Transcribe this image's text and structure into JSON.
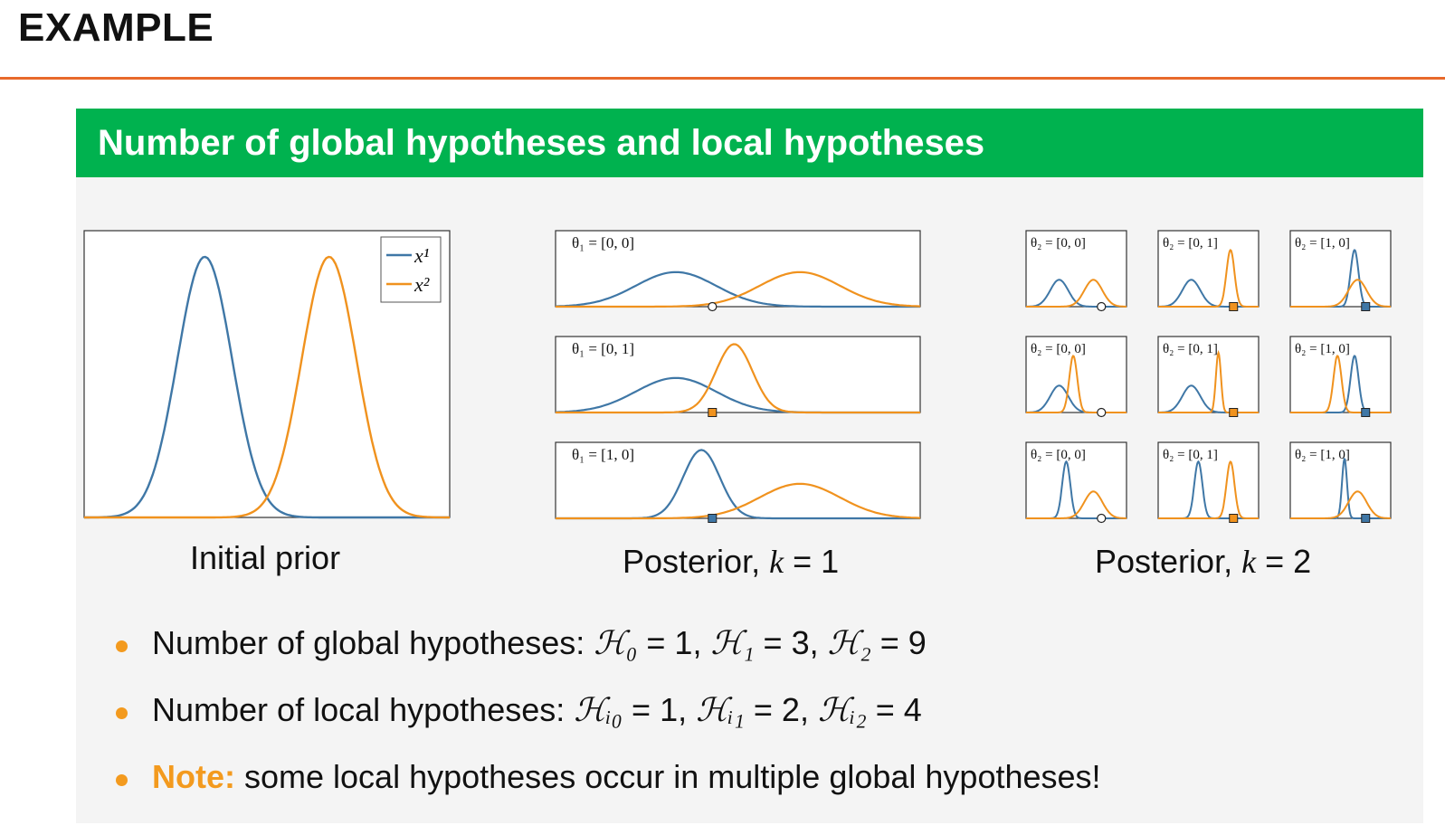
{
  "slide": {
    "title": "EXAMPLE",
    "block_title": "Number of global hypotheses and local hypotheses",
    "accent_color": "#e8692a",
    "block_header_color": "#00b24f"
  },
  "figures": {
    "initial_prior": {
      "caption": "Initial prior",
      "legend": [
        "x¹",
        "x²"
      ]
    },
    "posterior_k1": {
      "caption_prefix": "Posterior, ",
      "caption_math": "k",
      "caption_suffix": " = 1",
      "panel_labels": [
        "θ₁ = [0,  0]",
        "θ₁ = [0,  1]",
        "θ₁ = [1,  0]"
      ]
    },
    "posterior_k2": {
      "caption_prefix": "Posterior, ",
      "caption_math": "k",
      "caption_suffix": " = 2",
      "panel_labels": [
        [
          "θ₂ = [0,  0]",
          "θ₂ = [0,  1]",
          "θ₂ = [1,  0]"
        ],
        [
          "θ₂ = [0,  0]",
          "θ₂ = [0,  1]",
          "θ₂ = [1,  0]"
        ],
        [
          "θ₂ = [0,  0]",
          "θ₂ = [0,  1]",
          "θ₂ = [1,  0]"
        ]
      ]
    }
  },
  "bullets": {
    "global_text": "Number of global hypotheses: ",
    "global_h0": "ℋ₀",
    "global_v0": " = 1, ",
    "global_h1": "ℋ₁",
    "global_v1": " = 3, ",
    "global_h2": "ℋ₂",
    "global_v2": " = 9",
    "local_text": "Number of local hypotheses: ",
    "local_h0": "ℋᵢ₀",
    "local_v0": " = 1, ",
    "local_h1": "ℋᵢ₁",
    "local_v1": " = 2, ",
    "local_h2": "ℋᵢ₂",
    "local_v2": " = 4",
    "note_label": "Note:",
    "note_text": " some local hypotheses occur in multiple global hypotheses!"
  },
  "colors": {
    "blue": "#3f77a6",
    "orange": "#f0921e"
  },
  "chart_data": [
    {
      "type": "line",
      "name": "initial_prior",
      "series": [
        {
          "name": "x¹",
          "curve": "gaussian",
          "mean": 0.33,
          "sd": 0.075,
          "peak": 1.0
        },
        {
          "name": "x²",
          "curve": "gaussian",
          "mean": 0.67,
          "sd": 0.075,
          "peak": 1.0
        }
      ]
    },
    {
      "type": "line",
      "name": "posterior_k1",
      "panels": [
        {
          "marker": "open-circle",
          "marker_x": 0.43,
          "series": [
            {
              "mean": 0.33,
              "sd": 0.11,
              "peak": 0.48
            },
            {
              "mean": 0.67,
              "sd": 0.11,
              "peak": 0.48
            }
          ]
        },
        {
          "marker": "orange-square",
          "marker_x": 0.43,
          "series": [
            {
              "mean": 0.33,
              "sd": 0.11,
              "peak": 0.48
            },
            {
              "mean": 0.49,
              "sd": 0.05,
              "peak": 0.95
            }
          ]
        },
        {
          "marker": "blue-square",
          "marker_x": 0.43,
          "series": [
            {
              "mean": 0.4,
              "sd": 0.05,
              "peak": 0.95
            },
            {
              "mean": 0.67,
              "sd": 0.11,
              "peak": 0.48
            }
          ]
        }
      ]
    },
    {
      "type": "line",
      "name": "posterior_k2",
      "panels": [
        {
          "row": 0,
          "col": 0,
          "marker": "open-circle",
          "series": [
            {
              "mean": 0.33,
              "sd": 0.09,
              "peak": 0.45
            },
            {
              "mean": 0.67,
              "sd": 0.09,
              "peak": 0.45
            }
          ]
        },
        {
          "row": 0,
          "col": 1,
          "marker": "orange-square",
          "series": [
            {
              "mean": 0.33,
              "sd": 0.09,
              "peak": 0.45
            },
            {
              "mean": 0.72,
              "sd": 0.04,
              "peak": 0.95
            }
          ]
        },
        {
          "row": 0,
          "col": 2,
          "marker": "blue-square",
          "series": [
            {
              "mean": 0.64,
              "sd": 0.04,
              "peak": 0.95
            },
            {
              "mean": 0.67,
              "sd": 0.09,
              "peak": 0.45
            }
          ]
        },
        {
          "row": 1,
          "col": 0,
          "marker": "open-circle",
          "series": [
            {
              "mean": 0.33,
              "sd": 0.09,
              "peak": 0.45
            },
            {
              "mean": 0.47,
              "sd": 0.04,
              "peak": 0.95
            }
          ]
        },
        {
          "row": 1,
          "col": 1,
          "marker": "orange-square",
          "series": [
            {
              "mean": 0.33,
              "sd": 0.09,
              "peak": 0.45
            },
            {
              "mean": 0.6,
              "sd": 0.025,
              "peak": 1.0
            }
          ]
        },
        {
          "row": 1,
          "col": 2,
          "marker": "blue-square",
          "series": [
            {
              "mean": 0.64,
              "sd": 0.04,
              "peak": 0.95
            },
            {
              "mean": 0.47,
              "sd": 0.04,
              "peak": 0.95
            }
          ]
        },
        {
          "row": 2,
          "col": 0,
          "marker": "open-circle",
          "series": [
            {
              "mean": 0.4,
              "sd": 0.04,
              "peak": 0.95
            },
            {
              "mean": 0.67,
              "sd": 0.09,
              "peak": 0.45
            }
          ]
        },
        {
          "row": 2,
          "col": 1,
          "marker": "orange-square",
          "series": [
            {
              "mean": 0.4,
              "sd": 0.04,
              "peak": 0.95
            },
            {
              "mean": 0.72,
              "sd": 0.04,
              "peak": 0.95
            }
          ]
        },
        {
          "row": 2,
          "col": 2,
          "marker": "blue-square",
          "series": [
            {
              "mean": 0.54,
              "sd": 0.025,
              "peak": 1.0
            },
            {
              "mean": 0.67,
              "sd": 0.09,
              "peak": 0.45
            }
          ]
        }
      ]
    }
  ]
}
